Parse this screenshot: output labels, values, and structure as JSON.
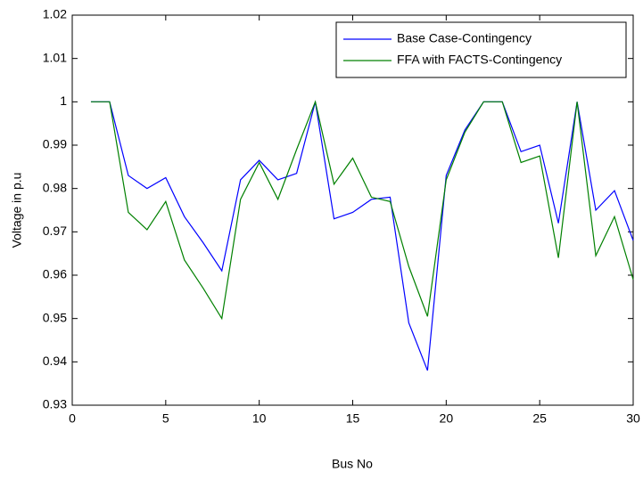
{
  "chart_data": {
    "type": "line",
    "xlabel": "Bus No",
    "ylabel": "Voltage in p.u",
    "x": [
      1,
      2,
      3,
      4,
      5,
      6,
      7,
      8,
      9,
      10,
      11,
      12,
      13,
      14,
      15,
      16,
      17,
      18,
      19,
      20,
      21,
      22,
      23,
      24,
      25,
      26,
      27,
      28,
      29,
      30
    ],
    "series": [
      {
        "name": "Base Case-Contingency",
        "color": "#0000ff",
        "values": [
          1.0,
          1.0,
          0.983,
          0.98,
          0.9825,
          0.9735,
          0.9675,
          0.961,
          0.982,
          0.9865,
          0.982,
          0.9835,
          1.0,
          0.973,
          0.9745,
          0.9775,
          0.978,
          0.949,
          0.938,
          0.983,
          0.9935,
          1.0,
          1.0,
          0.9885,
          0.99,
          0.972,
          1.0,
          0.975,
          0.9795,
          0.968
        ]
      },
      {
        "name": "FFA with FACTS-Contingency",
        "color": "#008000",
        "values": [
          1.0,
          1.0,
          0.9745,
          0.9705,
          0.977,
          0.9635,
          0.957,
          0.95,
          0.9775,
          0.986,
          0.9775,
          0.989,
          1.0,
          0.981,
          0.987,
          0.978,
          0.977,
          0.962,
          0.9505,
          0.982,
          0.993,
          1.0,
          1.0,
          0.986,
          0.9875,
          0.964,
          1.0,
          0.9645,
          0.9735,
          0.959
        ]
      }
    ],
    "xlim": [
      0,
      30
    ],
    "xticks": [
      0,
      5,
      10,
      15,
      20,
      25,
      30
    ],
    "ylim": [
      0.93,
      1.02
    ],
    "yticks": [
      0.93,
      0.94,
      0.95,
      0.96,
      0.97,
      0.98,
      0.99,
      1,
      1.01,
      1.02
    ],
    "grid": false,
    "legend": "northeast"
  }
}
